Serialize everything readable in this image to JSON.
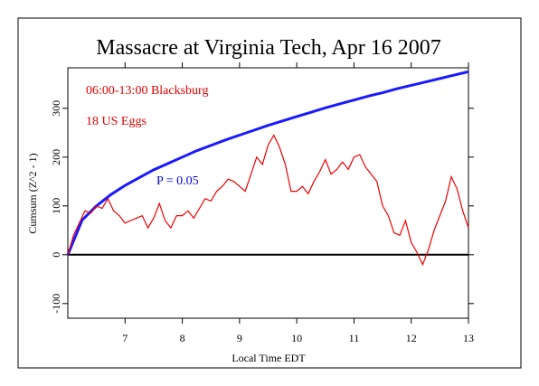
{
  "chart_data": {
    "type": "line",
    "title": "Massacre at Virginia Tech, Apr 16 2007",
    "xlabel": "Local Time EDT",
    "ylabel": "Cumsum (Z^2 - 1)",
    "annotations": [
      {
        "text": "06:00-13:00 Blacksburg",
        "color": "#e00000"
      },
      {
        "text": "18 US Eggs",
        "color": "#e00000"
      },
      {
        "text": "P = 0.05",
        "color": "#0000cc"
      }
    ],
    "xlim": [
      6,
      13
    ],
    "xticks": [
      7,
      8,
      9,
      10,
      11,
      12,
      13
    ],
    "ylim": [
      -130,
      383
    ],
    "yticks": [
      -100,
      0,
      100,
      200,
      300
    ],
    "hline": 0,
    "series": [
      {
        "color": "#1a1aff",
        "x": [
          6,
          6.25,
          6.5,
          6.75,
          7,
          7.25,
          7.5,
          7.75,
          8,
          8.25,
          8.5,
          8.75,
          9,
          9.25,
          9.5,
          9.75,
          10,
          10.25,
          10.5,
          10.75,
          11,
          11.25,
          11.5,
          11.75,
          12,
          12.25,
          12.5,
          12.75,
          13
        ],
        "values": [
          0,
          71,
          100,
          123,
          142,
          158,
          174,
          187,
          200,
          213,
          224,
          235,
          245,
          255,
          265,
          274,
          283,
          292,
          301,
          309,
          317,
          325,
          332,
          340,
          347,
          354,
          361,
          368,
          375
        ]
      },
      {
        "color": "#ee0000",
        "x": [
          6,
          6.1,
          6.2,
          6.3,
          6.4,
          6.5,
          6.6,
          6.7,
          6.8,
          6.9,
          7,
          7.1,
          7.2,
          7.3,
          7.4,
          7.5,
          7.6,
          7.7,
          7.8,
          7.9,
          8,
          8.1,
          8.2,
          8.3,
          8.4,
          8.5,
          8.6,
          8.7,
          8.8,
          8.9,
          9,
          9.1,
          9.2,
          9.3,
          9.4,
          9.5,
          9.6,
          9.7,
          9.8,
          9.9,
          10,
          10.1,
          10.2,
          10.3,
          10.4,
          10.5,
          10.6,
          10.7,
          10.8,
          10.9,
          11,
          11.1,
          11.2,
          11.3,
          11.4,
          11.5,
          11.6,
          11.7,
          11.8,
          11.9,
          12,
          12.1,
          12.2,
          12.3,
          12.4,
          12.5,
          12.6,
          12.7,
          12.8,
          12.9,
          13
        ],
        "values": [
          0,
          40,
          65,
          90,
          85,
          100,
          95,
          115,
          90,
          80,
          65,
          70,
          75,
          80,
          55,
          75,
          105,
          70,
          55,
          80,
          80,
          90,
          75,
          95,
          115,
          110,
          130,
          140,
          155,
          150,
          140,
          130,
          165,
          200,
          185,
          225,
          245,
          220,
          185,
          130,
          130,
          140,
          125,
          150,
          170,
          195,
          165,
          175,
          190,
          175,
          200,
          205,
          180,
          165,
          150,
          100,
          80,
          45,
          40,
          70,
          25,
          5,
          -20,
          10,
          50,
          80,
          110,
          160,
          135,
          90,
          55
        ]
      }
    ]
  }
}
